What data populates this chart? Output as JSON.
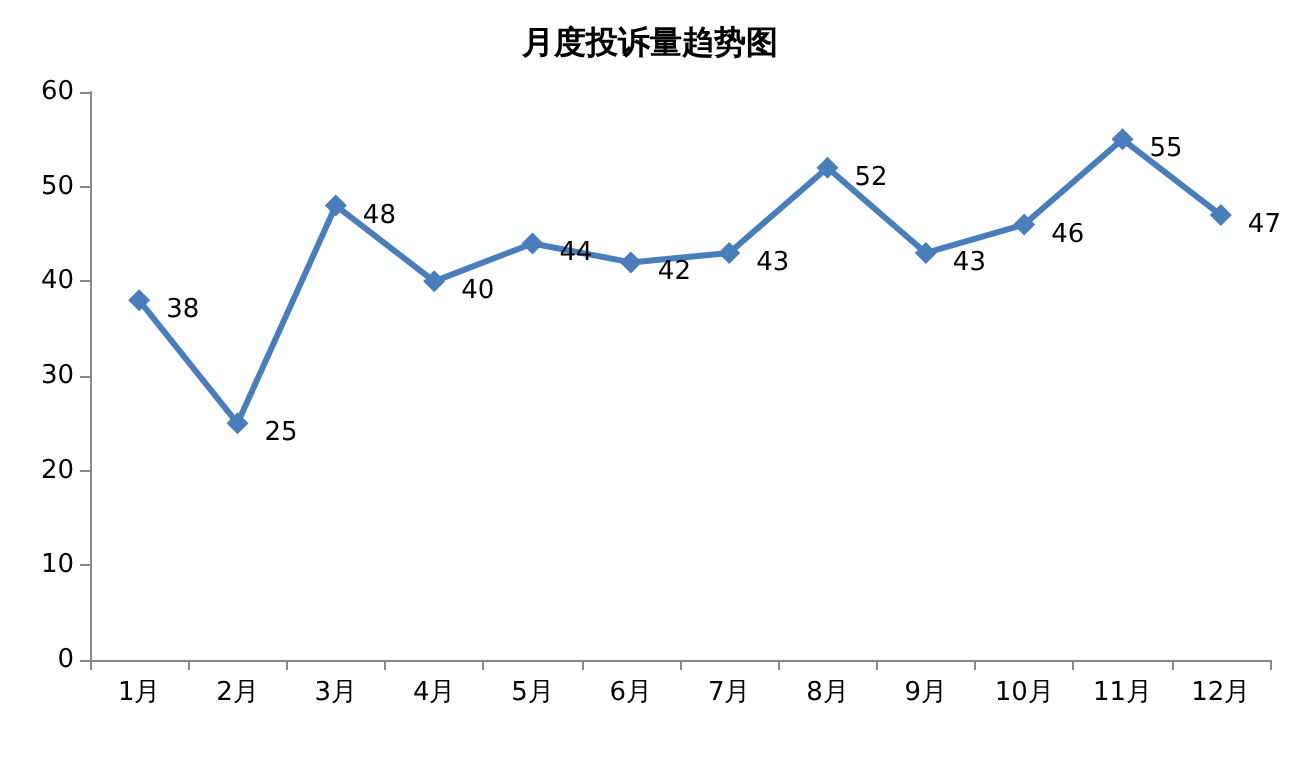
{
  "chart_data": {
    "type": "line",
    "title": "月度投诉量趋势图",
    "categories": [
      "1月",
      "2月",
      "3月",
      "4月",
      "5月",
      "6月",
      "7月",
      "8月",
      "9月",
      "10月",
      "11月",
      "12月"
    ],
    "series": [
      {
        "color": "#4a7ebb",
        "values": [
          38,
          25,
          48,
          40,
          44,
          42,
          43,
          52,
          43,
          46,
          55,
          47
        ]
      }
    ],
    "ylim": [
      0,
      60
    ],
    "yticks": [
      0,
      10,
      20,
      30,
      40,
      50,
      60
    ],
    "grid": false,
    "marker": "diamond",
    "line_style": "solid",
    "data_labels": true
  }
}
